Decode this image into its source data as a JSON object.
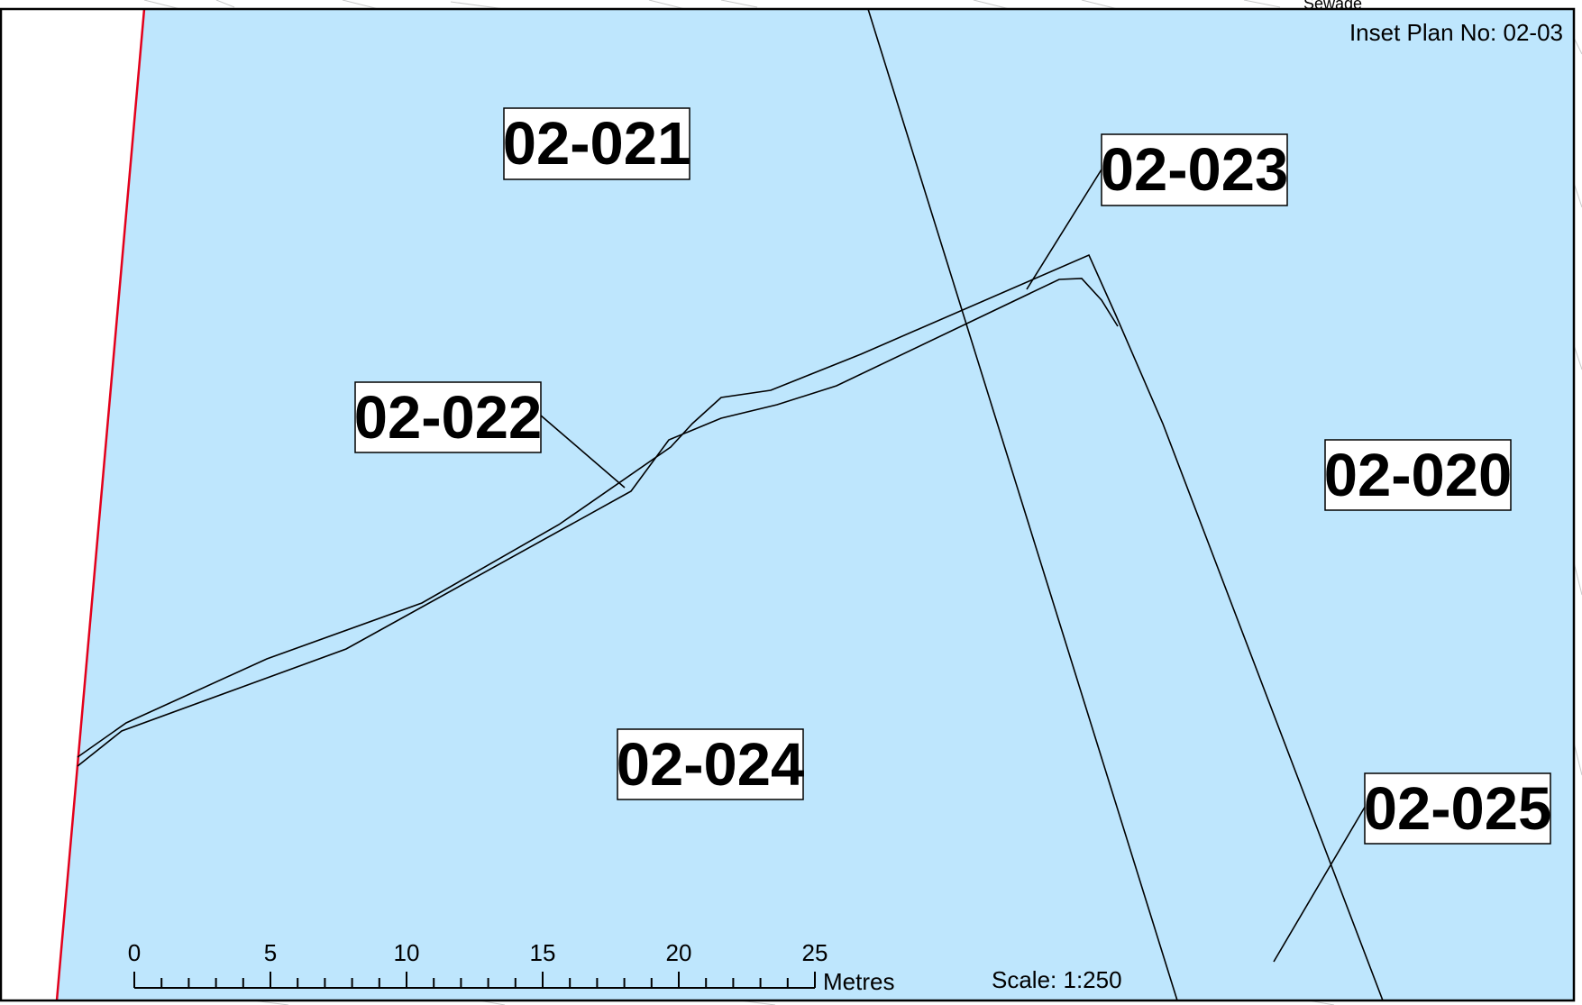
{
  "map": {
    "inset_plan_label": "Inset Plan No: 02-03",
    "background_label": "Sewage",
    "scale_text": "Scale: 1:250",
    "colors": {
      "parcel_fill": "#bee6fd",
      "boundary_red": "#e3001b",
      "line": "#000000",
      "frame": "#000000"
    },
    "parcels": [
      {
        "id": "02-021"
      },
      {
        "id": "02-022"
      },
      {
        "id": "02-023"
      },
      {
        "id": "02-020"
      },
      {
        "id": "02-024"
      },
      {
        "id": "02-025"
      }
    ]
  },
  "scale_bar": {
    "unit": "Metres",
    "ticks": [
      "0",
      "5",
      "10",
      "15",
      "20",
      "25"
    ]
  }
}
